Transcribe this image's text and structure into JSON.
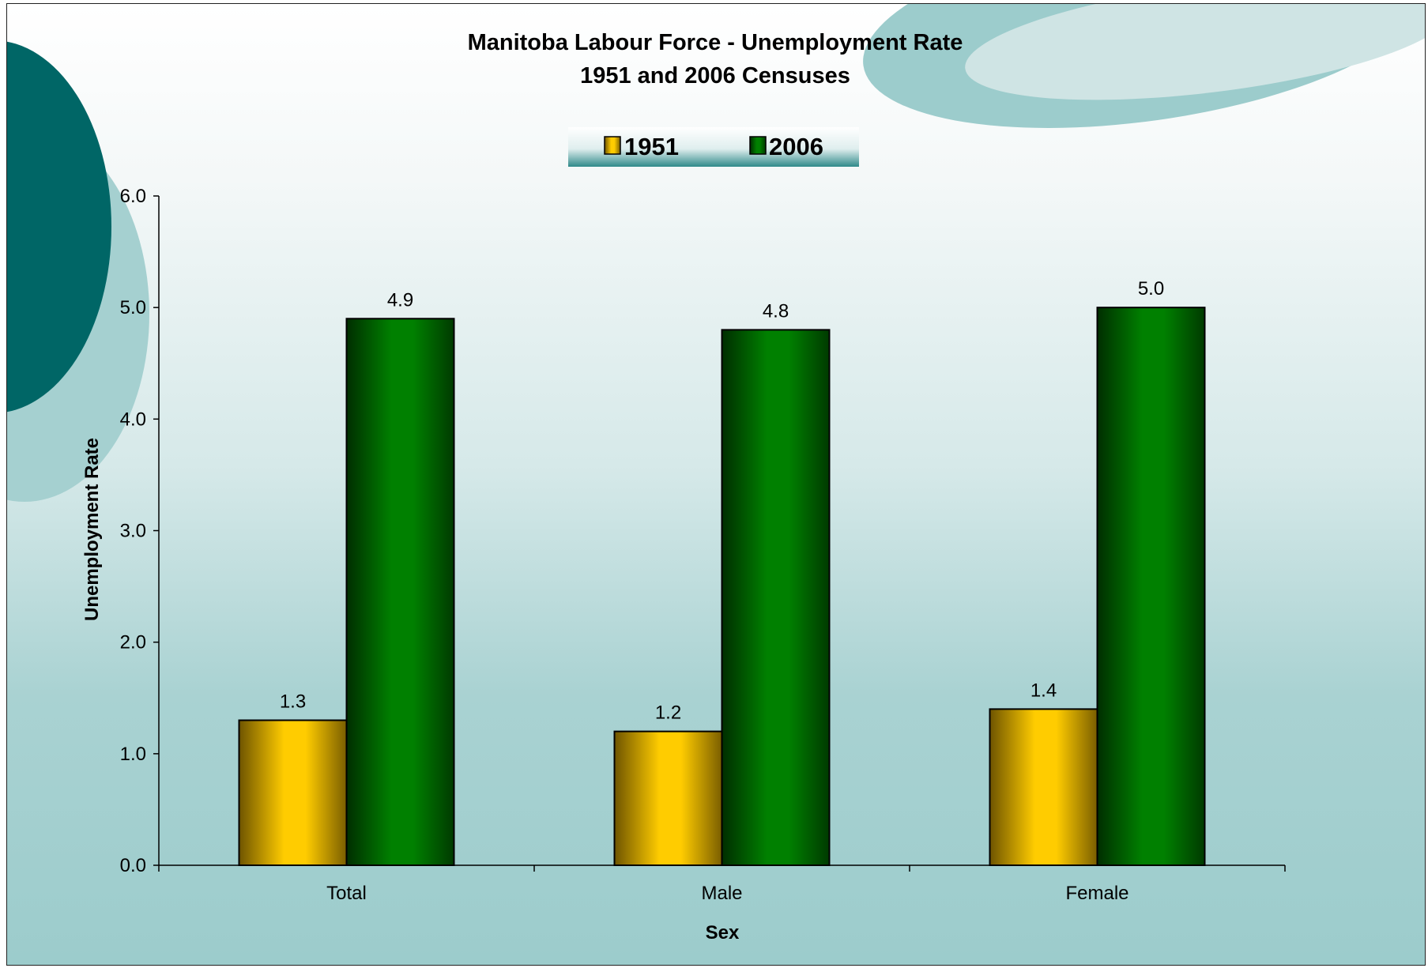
{
  "colors": {
    "series_1951": "#ffcc00",
    "series_2006": "#008000",
    "accent_dark": "#006666",
    "accent_light": "#9ccccc"
  },
  "chart_data": {
    "type": "bar",
    "title": "Manitoba Labour Force - Unemployment Rate",
    "subtitle": "1951 and 2006 Censuses",
    "xlabel": "Sex",
    "ylabel": "Unemployment Rate",
    "categories": [
      "Total",
      "Male",
      "Female"
    ],
    "series": [
      {
        "name": "1951",
        "values": [
          1.3,
          1.2,
          1.4
        ],
        "labels": [
          "1.3",
          "1.2",
          "1.4"
        ]
      },
      {
        "name": "2006",
        "values": [
          4.9,
          4.8,
          5.0
        ],
        "labels": [
          "4.9",
          "4.8",
          "5.0"
        ]
      }
    ],
    "ylim": [
      0,
      6
    ],
    "yticks": [
      "0.0",
      "1.0",
      "2.0",
      "3.0",
      "4.0",
      "5.0",
      "6.0"
    ],
    "grid": false,
    "legend_position": "top"
  }
}
